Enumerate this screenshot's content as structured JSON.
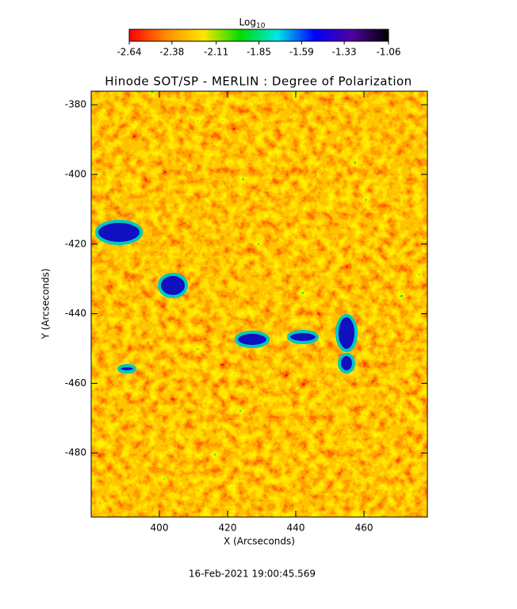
{
  "chart_data": {
    "type": "heatmap",
    "title": "Hinode SOT/SP - MERLIN : Degree of Polarization",
    "xlabel": "X (Arcseconds)",
    "ylabel": "Y (Arcseconds)",
    "xlim": [
      380,
      478.6
    ],
    "ylim": [
      -498.4,
      -376.1
    ],
    "xticks": [
      400,
      420,
      440,
      460
    ],
    "yticks": [
      -480,
      -460,
      -440,
      -420,
      -400,
      -380
    ],
    "colorbar": {
      "title": "Log",
      "title_sub": "10",
      "lim": [
        -2.64,
        -1.06
      ],
      "ticks": [
        -2.64,
        -2.38,
        -2.11,
        -1.85,
        -1.59,
        -1.33,
        -1.06
      ],
      "colors": [
        "#ff0000",
        "#ff8c00",
        "#ffe600",
        "#00dc00",
        "#00e6e6",
        "#0000ff",
        "#5000a0",
        "#000000"
      ]
    },
    "footer": "16-Feb-2021 19:00:45.569"
  }
}
